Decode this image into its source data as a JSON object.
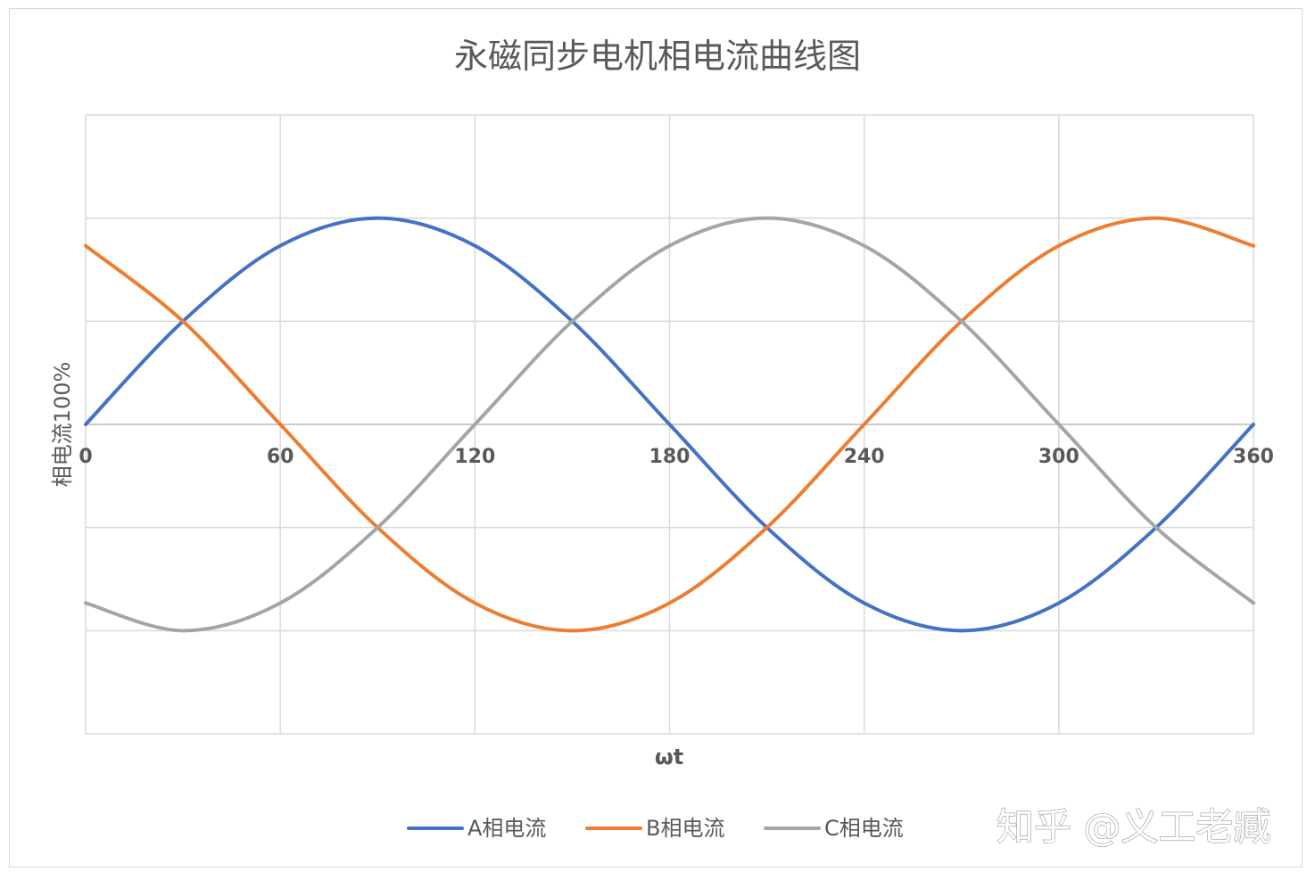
{
  "chart_data": {
    "type": "line",
    "title": "永磁同步电机相电流曲线图",
    "xlabel": "ωt",
    "ylabel": "相电流100%",
    "xlim": [
      0,
      360
    ],
    "ylim": [
      -1.5,
      1.5
    ],
    "x_ticks": [
      0,
      60,
      120,
      180,
      240,
      300,
      360
    ],
    "x_tick_labels": [
      "0",
      "60",
      "120",
      "180",
      "240",
      "300",
      "360"
    ],
    "y_gridlines": [
      -1.5,
      -1,
      -0.5,
      0,
      0.5,
      1,
      1.5
    ],
    "grid": true,
    "legend_position": "bottom",
    "series": [
      {
        "name": "A相电流",
        "color": "#4472C4",
        "x": [
          0,
          30,
          60,
          90,
          120,
          150,
          180,
          210,
          240,
          270,
          300,
          330,
          360
        ],
        "values": [
          0,
          0.5,
          0.866,
          1,
          0.866,
          0.5,
          0,
          -0.5,
          -0.866,
          -1,
          -0.866,
          -0.5,
          0
        ]
      },
      {
        "name": "B相电流",
        "color": "#ED7D31",
        "x": [
          0,
          30,
          60,
          90,
          120,
          150,
          180,
          210,
          240,
          270,
          300,
          330,
          360
        ],
        "values": [
          0.866,
          0.5,
          0,
          -0.5,
          -0.866,
          -1,
          -0.866,
          -0.5,
          0,
          0.5,
          0.866,
          1,
          0.866
        ]
      },
      {
        "name": "C相电流",
        "color": "#A5A5A5",
        "x": [
          0,
          30,
          60,
          90,
          120,
          150,
          180,
          210,
          240,
          270,
          300,
          330,
          360
        ],
        "values": [
          -0.866,
          -1,
          -0.866,
          -0.5,
          0,
          0.5,
          0.866,
          1,
          0.866,
          0.5,
          0,
          -0.5,
          -0.866
        ]
      }
    ]
  },
  "watermark": {
    "text": "知乎 @义工老臧"
  }
}
